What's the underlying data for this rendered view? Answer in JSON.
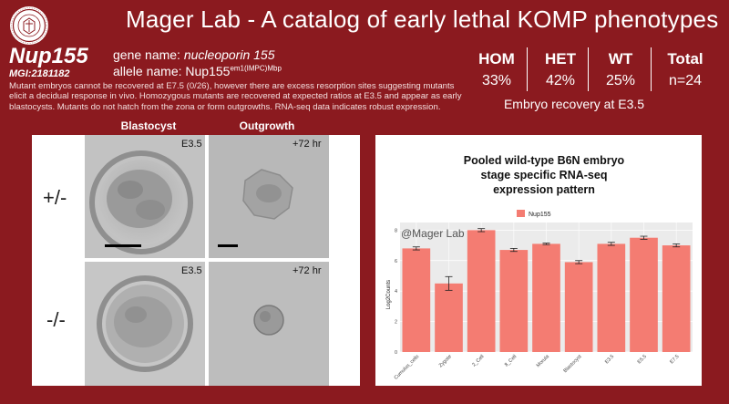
{
  "header": {
    "title": "Mager Lab - A catalog of early lethal KOMP phenotypes"
  },
  "gene": {
    "symbol": "Nup155",
    "mgi": "MGI:2181182",
    "gene_name_label": "gene name:",
    "gene_name": "nucleoporin 155",
    "allele_label": "allele name:",
    "allele_base": "Nup155",
    "allele_sup": "em1(IMPC)Mbp",
    "description": "Mutant embryos cannot be recovered at E7.5 (0/26), however there are excess resorption sites suggesting mutants elicit a decidual response in vivo. Homozygous mutants are recovered at expected ratios at E3.5 and appear as early blastocysts. Mutants do not hatch from the zona or form outgrowths. RNA-seq data indicates robust expression."
  },
  "recovery": {
    "headers": [
      "HOM",
      "HET",
      "WT",
      "Total"
    ],
    "values": [
      "33%",
      "42%",
      "25%",
      "n=24"
    ],
    "caption": "Embryo recovery at E3.5"
  },
  "images": {
    "col_blastocyst": "Blastocyst",
    "col_outgrowth": "Outgrowth",
    "row_het": "+/-",
    "row_hom": "-/-",
    "stage_e35": "E3.5",
    "stage_72": "+72 hr"
  },
  "chart_data": {
    "type": "bar",
    "title_lines": [
      "Pooled wild-type B6N embryo",
      "stage specific RNA-seq",
      "expression pattern"
    ],
    "watermark": "@Mager Lab",
    "legend": [
      "Nup155"
    ],
    "legend_position": "top",
    "ylabel": "Log2Counts",
    "xlabel": "",
    "ylim": [
      0,
      8.5
    ],
    "yticks": [
      "0",
      "2",
      "4",
      "6",
      "8"
    ],
    "grid": true,
    "color": "#f47c72",
    "categories": [
      "Cumulus_cells",
      "Zygote",
      "2_Cell",
      "8_Cell",
      "Morula",
      "Blastocyst",
      "E3.5",
      "E5.5",
      "E7.5"
    ],
    "values": [
      6.8,
      4.5,
      8.0,
      6.7,
      7.1,
      5.9,
      7.1,
      7.5,
      7.0
    ],
    "errors": [
      0.1,
      0.45,
      0.1,
      0.1,
      0.05,
      0.1,
      0.1,
      0.1,
      0.1
    ]
  }
}
